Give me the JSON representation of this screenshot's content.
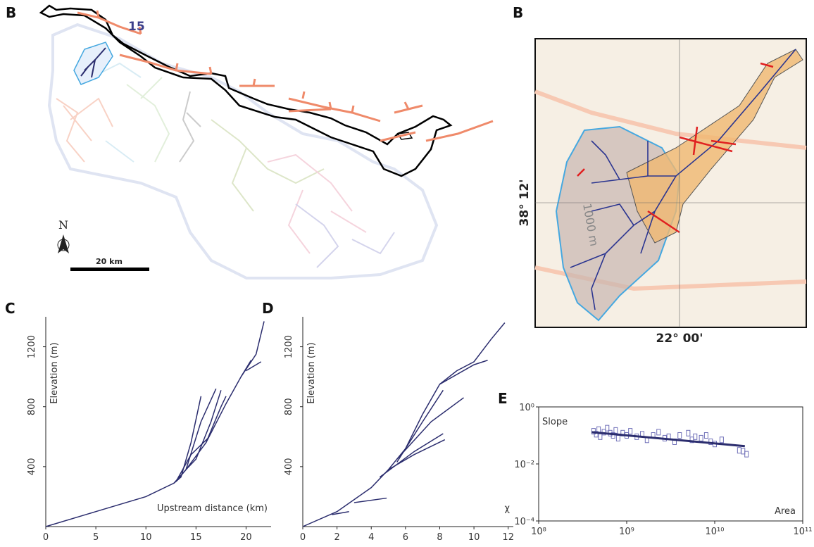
{
  "maps": [
    {
      "letter": "B",
      "basin_label": "15",
      "north": "N",
      "scale": "20 km"
    },
    {
      "letter": "B",
      "latitude": "38° 12'",
      "longitude": "22° 00'",
      "contour": "1000 m"
    }
  ],
  "chart_data": [
    {
      "type": "line",
      "title": "C",
      "y_label": "Elevation (m)",
      "x_label": "Upstream distance (km)",
      "xlim": [
        0,
        22.5
      ],
      "xticks": [
        0,
        5,
        10,
        15,
        20
      ],
      "ylim": [
        0,
        1400
      ],
      "yticks": [
        400,
        800,
        1200
      ],
      "series": [
        {
          "color": "#2b2d6e",
          "x": [
            0,
            5,
            10,
            12.8,
            14,
            16,
            18,
            19.5,
            21,
            21.8
          ],
          "values": [
            0,
            100,
            200,
            290,
            380,
            560,
            820,
            1000,
            1150,
            1370
          ]
        },
        {
          "color": "#2b2d6e",
          "x": [
            12.8,
            13.5,
            14.5,
            15.5
          ],
          "values": [
            290,
            330,
            560,
            870
          ]
        },
        {
          "color": "#2b2d6e",
          "x": [
            13,
            14,
            15.5,
            17
          ],
          "values": [
            300,
            380,
            700,
            920
          ]
        },
        {
          "color": "#2b2d6e",
          "x": [
            14,
            15,
            16.5,
            17.5
          ],
          "values": [
            380,
            450,
            700,
            910
          ]
        },
        {
          "color": "#2b2d6e",
          "x": [
            16,
            17.5,
            18
          ],
          "values": [
            560,
            800,
            870
          ]
        },
        {
          "color": "#2b2d6e",
          "x": [
            19.5,
            20.5
          ],
          "values": [
            1000,
            1110
          ]
        },
        {
          "color": "#2b2d6e",
          "x": [
            20,
            21.5
          ],
          "values": [
            1040,
            1100
          ]
        },
        {
          "color": "#2b2d6e",
          "x": [
            13,
            14.5,
            16.2
          ],
          "values": [
            300,
            480,
            590
          ]
        }
      ]
    },
    {
      "type": "line",
      "title": "D",
      "y_label": "Elevation (m)",
      "x_label": "χ",
      "xlim": [
        0,
        12.3
      ],
      "xticks": [
        0,
        2,
        4,
        6,
        8,
        10,
        12
      ],
      "ylim": [
        0,
        1400
      ],
      "yticks": [
        400,
        800,
        1200
      ],
      "series": [
        {
          "color": "#2b2d6e",
          "x": [
            0,
            2,
            4,
            5,
            6,
            7,
            8,
            9,
            10,
            11,
            11.8
          ],
          "values": [
            0,
            100,
            260,
            380,
            520,
            750,
            950,
            1040,
            1100,
            1250,
            1360
          ]
        },
        {
          "color": "#2b2d6e",
          "x": [
            8,
            10,
            10.8
          ],
          "values": [
            950,
            1080,
            1110
          ]
        },
        {
          "color": "#2b2d6e",
          "x": [
            5.5,
            7,
            8.2
          ],
          "values": [
            430,
            700,
            910
          ]
        },
        {
          "color": "#2b2d6e",
          "x": [
            5.5,
            7.5,
            9.4
          ],
          "values": [
            450,
            700,
            860
          ]
        },
        {
          "color": "#2b2d6e",
          "x": [
            4.5,
            6.5,
            8.2
          ],
          "values": [
            330,
            500,
            620
          ]
        },
        {
          "color": "#2b2d6e",
          "x": [
            5,
            6.5,
            8.3
          ],
          "values": [
            380,
            480,
            580
          ]
        },
        {
          "color": "#2b2d6e",
          "x": [
            3,
            4.9
          ],
          "values": [
            160,
            190
          ]
        },
        {
          "color": "#2b2d6e",
          "x": [
            1.7,
            2.7
          ],
          "values": [
            80,
            100
          ]
        }
      ]
    },
    {
      "type": "scatter",
      "title": "E",
      "y_label": "Slope",
      "x_label": "Area",
      "xscale": "log",
      "yscale": "log",
      "xlim": [
        100000000,
        100000000000
      ],
      "xticks": [
        {
          "value": 100000000,
          "label": "10⁸"
        },
        {
          "value": 1000000000,
          "label": "10⁹"
        },
        {
          "value": 10000000000,
          "label": "10¹⁰"
        },
        {
          "value": 100000000000,
          "label": "10¹¹"
        }
      ],
      "ylim": [
        0.0001,
        1
      ],
      "yticks": [
        {
          "value": 1,
          "label": "10⁰"
        },
        {
          "value": 0.01,
          "label": "10⁻²"
        },
        {
          "value": 0.0001,
          "label": "10⁻⁴"
        }
      ],
      "series": [
        {
          "color": "#7070b8",
          "x": [
            420000000,
            450000000,
            480000000,
            500000000,
            550000000,
            600000000,
            650000000,
            700000000,
            750000000,
            800000000,
            900000000,
            1000000000,
            1100000000,
            1300000000,
            1500000000,
            1700000000,
            2000000000,
            2300000000,
            2700000000,
            3000000000,
            3500000000,
            4000000000,
            5000000000,
            5500000000,
            6000000000,
            7000000000,
            8000000000,
            9000000000,
            10000000000,
            12000000000,
            19000000000,
            21000000000,
            23000000000
          ],
          "values": [
            0.14,
            0.11,
            0.16,
            0.09,
            0.13,
            0.18,
            0.12,
            0.1,
            0.15,
            0.08,
            0.12,
            0.1,
            0.14,
            0.09,
            0.11,
            0.07,
            0.1,
            0.13,
            0.08,
            0.09,
            0.06,
            0.1,
            0.12,
            0.07,
            0.09,
            0.08,
            0.1,
            0.06,
            0.05,
            0.07,
            0.03,
            0.028,
            0.022
          ]
        },
        {
          "color": "#2b2d6e",
          "line": true,
          "x": [
            400000000,
            22000000000
          ],
          "values": [
            0.13,
            0.042
          ]
        }
      ]
    }
  ]
}
